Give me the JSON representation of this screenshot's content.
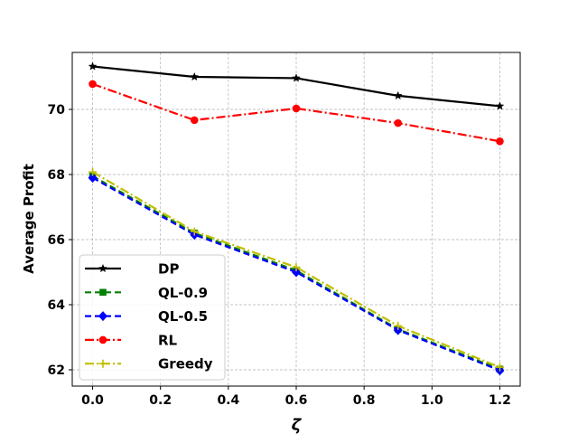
{
  "chart_data": {
    "type": "line",
    "xlabel": "ζ",
    "ylabel": "Average Profit",
    "x": [
      0.0,
      0.3,
      0.6,
      0.9,
      1.2
    ],
    "xlim": [
      -0.06,
      1.26
    ],
    "ylim": [
      61.5,
      71.75
    ],
    "xticks": [
      0.0,
      0.2,
      0.4,
      0.6,
      0.8,
      1.0,
      1.2
    ],
    "xtick_labels": [
      "0.0",
      "0.2",
      "0.4",
      "0.6",
      "0.8",
      "1.0",
      "1.2"
    ],
    "yticks": [
      62,
      64,
      66,
      68,
      70
    ],
    "ytick_labels": [
      "62",
      "64",
      "66",
      "68",
      "70"
    ],
    "grid": true,
    "legend_position": "lower-left",
    "series": [
      {
        "name": "DP",
        "values": [
          71.32,
          71.0,
          70.96,
          70.42,
          70.1
        ],
        "color": "#000000",
        "dash": "",
        "marker": "star"
      },
      {
        "name": "QL-0.9",
        "values": [
          67.95,
          66.2,
          65.05,
          63.25,
          62.02
        ],
        "color": "#008000",
        "dash": "7,4",
        "marker": "square"
      },
      {
        "name": "QL-0.5",
        "values": [
          67.9,
          66.15,
          65.0,
          63.22,
          61.98
        ],
        "color": "#0000ff",
        "dash": "7,4",
        "marker": "diamond"
      },
      {
        "name": "RL",
        "values": [
          70.78,
          69.67,
          70.03,
          69.58,
          69.02
        ],
        "color": "#ff0000",
        "dash": "10,3,2,3",
        "marker": "circle"
      },
      {
        "name": "Greedy",
        "values": [
          68.08,
          66.25,
          65.15,
          63.35,
          62.08
        ],
        "color": "#bfbf00",
        "dash": "10,3,2,3",
        "marker": "plus"
      }
    ]
  }
}
